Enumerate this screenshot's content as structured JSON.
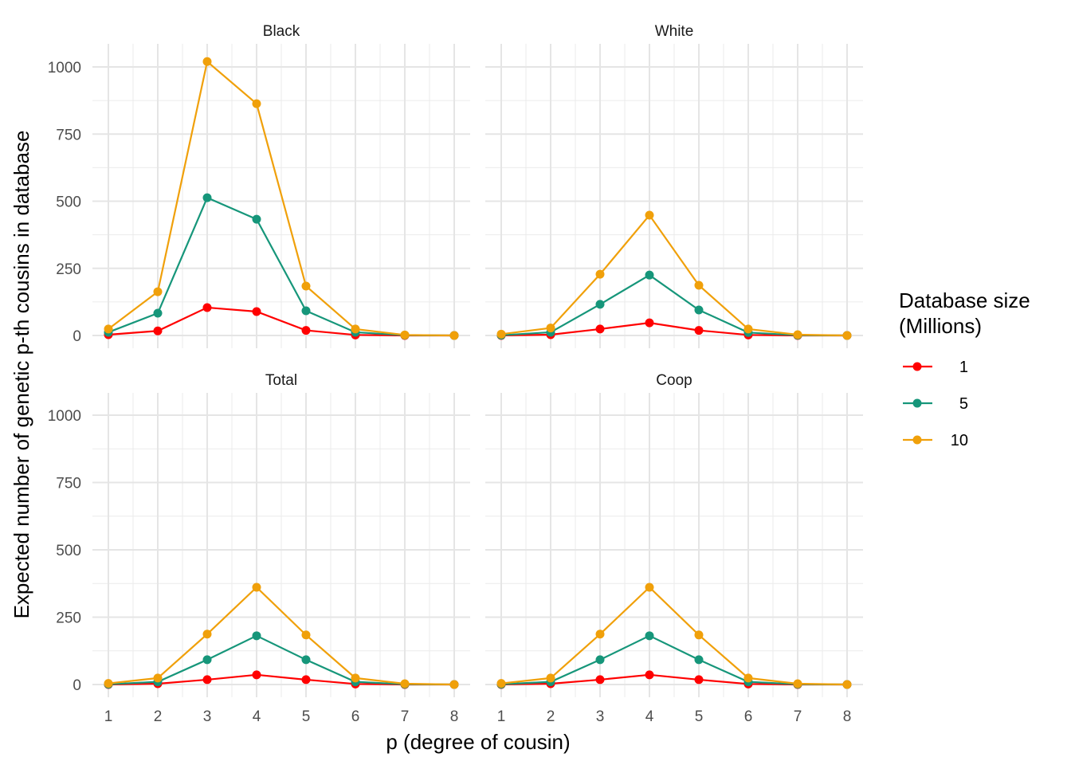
{
  "chart_data": {
    "type": "line",
    "facets": [
      "Black",
      "White",
      "Total",
      "Coop"
    ],
    "xlabel": "p (degree of cousin)",
    "ylabel": "Expected number of genetic p-th cousins in database",
    "x": [
      1,
      2,
      3,
      4,
      5,
      6,
      7,
      8
    ],
    "xticks": [
      "1",
      "2",
      "3",
      "4",
      "5",
      "6",
      "7",
      "8"
    ],
    "yticks": [
      "0",
      "250",
      "500",
      "750",
      "1000"
    ],
    "ylim": [
      -48,
      1070
    ],
    "grid": true,
    "legend": {
      "title_line1": "Database size",
      "title_line2": "(Millions)",
      "placement": "right",
      "entries": [
        "1",
        "5",
        "10"
      ]
    },
    "colors": {
      "1": "#FF0000",
      "5": "#16967A",
      "10": "#F0A00A"
    },
    "panels": [
      {
        "facet": "Black",
        "series": [
          {
            "name": "1",
            "values": [
              3,
              17,
              104,
              89,
              19,
              2,
              0,
              0
            ]
          },
          {
            "name": "5",
            "values": [
              12,
              83,
              513,
              433,
              92,
              12,
              1,
              0
            ]
          },
          {
            "name": "10",
            "values": [
              24,
              163,
              1020,
              863,
              184,
              24,
              2,
              0
            ]
          }
        ]
      },
      {
        "facet": "White",
        "series": [
          {
            "name": "1",
            "values": [
              0,
              3,
              24,
              47,
              19,
              2,
              0,
              0
            ]
          },
          {
            "name": "5",
            "values": [
              1,
              12,
              116,
              225,
              95,
              11,
              1,
              0
            ]
          },
          {
            "name": "10",
            "values": [
              5,
              28,
              228,
              448,
              187,
              24,
              3,
              0
            ]
          }
        ]
      },
      {
        "facet": "Total",
        "series": [
          {
            "name": "1",
            "values": [
              0,
              3,
              18,
              36,
              18,
              2,
              0,
              0
            ]
          },
          {
            "name": "5",
            "values": [
              1,
              10,
              92,
              181,
              92,
              10,
              1,
              0
            ]
          },
          {
            "name": "10",
            "values": [
              4,
              24,
              187,
              361,
              184,
              24,
              3,
              0
            ]
          }
        ]
      },
      {
        "facet": "Coop",
        "series": [
          {
            "name": "1",
            "values": [
              0,
              3,
              18,
              36,
              18,
              2,
              0,
              0
            ]
          },
          {
            "name": "5",
            "values": [
              1,
              10,
              92,
              181,
              92,
              10,
              1,
              0
            ]
          },
          {
            "name": "10",
            "values": [
              4,
              24,
              187,
              361,
              184,
              24,
              3,
              0
            ]
          }
        ]
      }
    ]
  }
}
